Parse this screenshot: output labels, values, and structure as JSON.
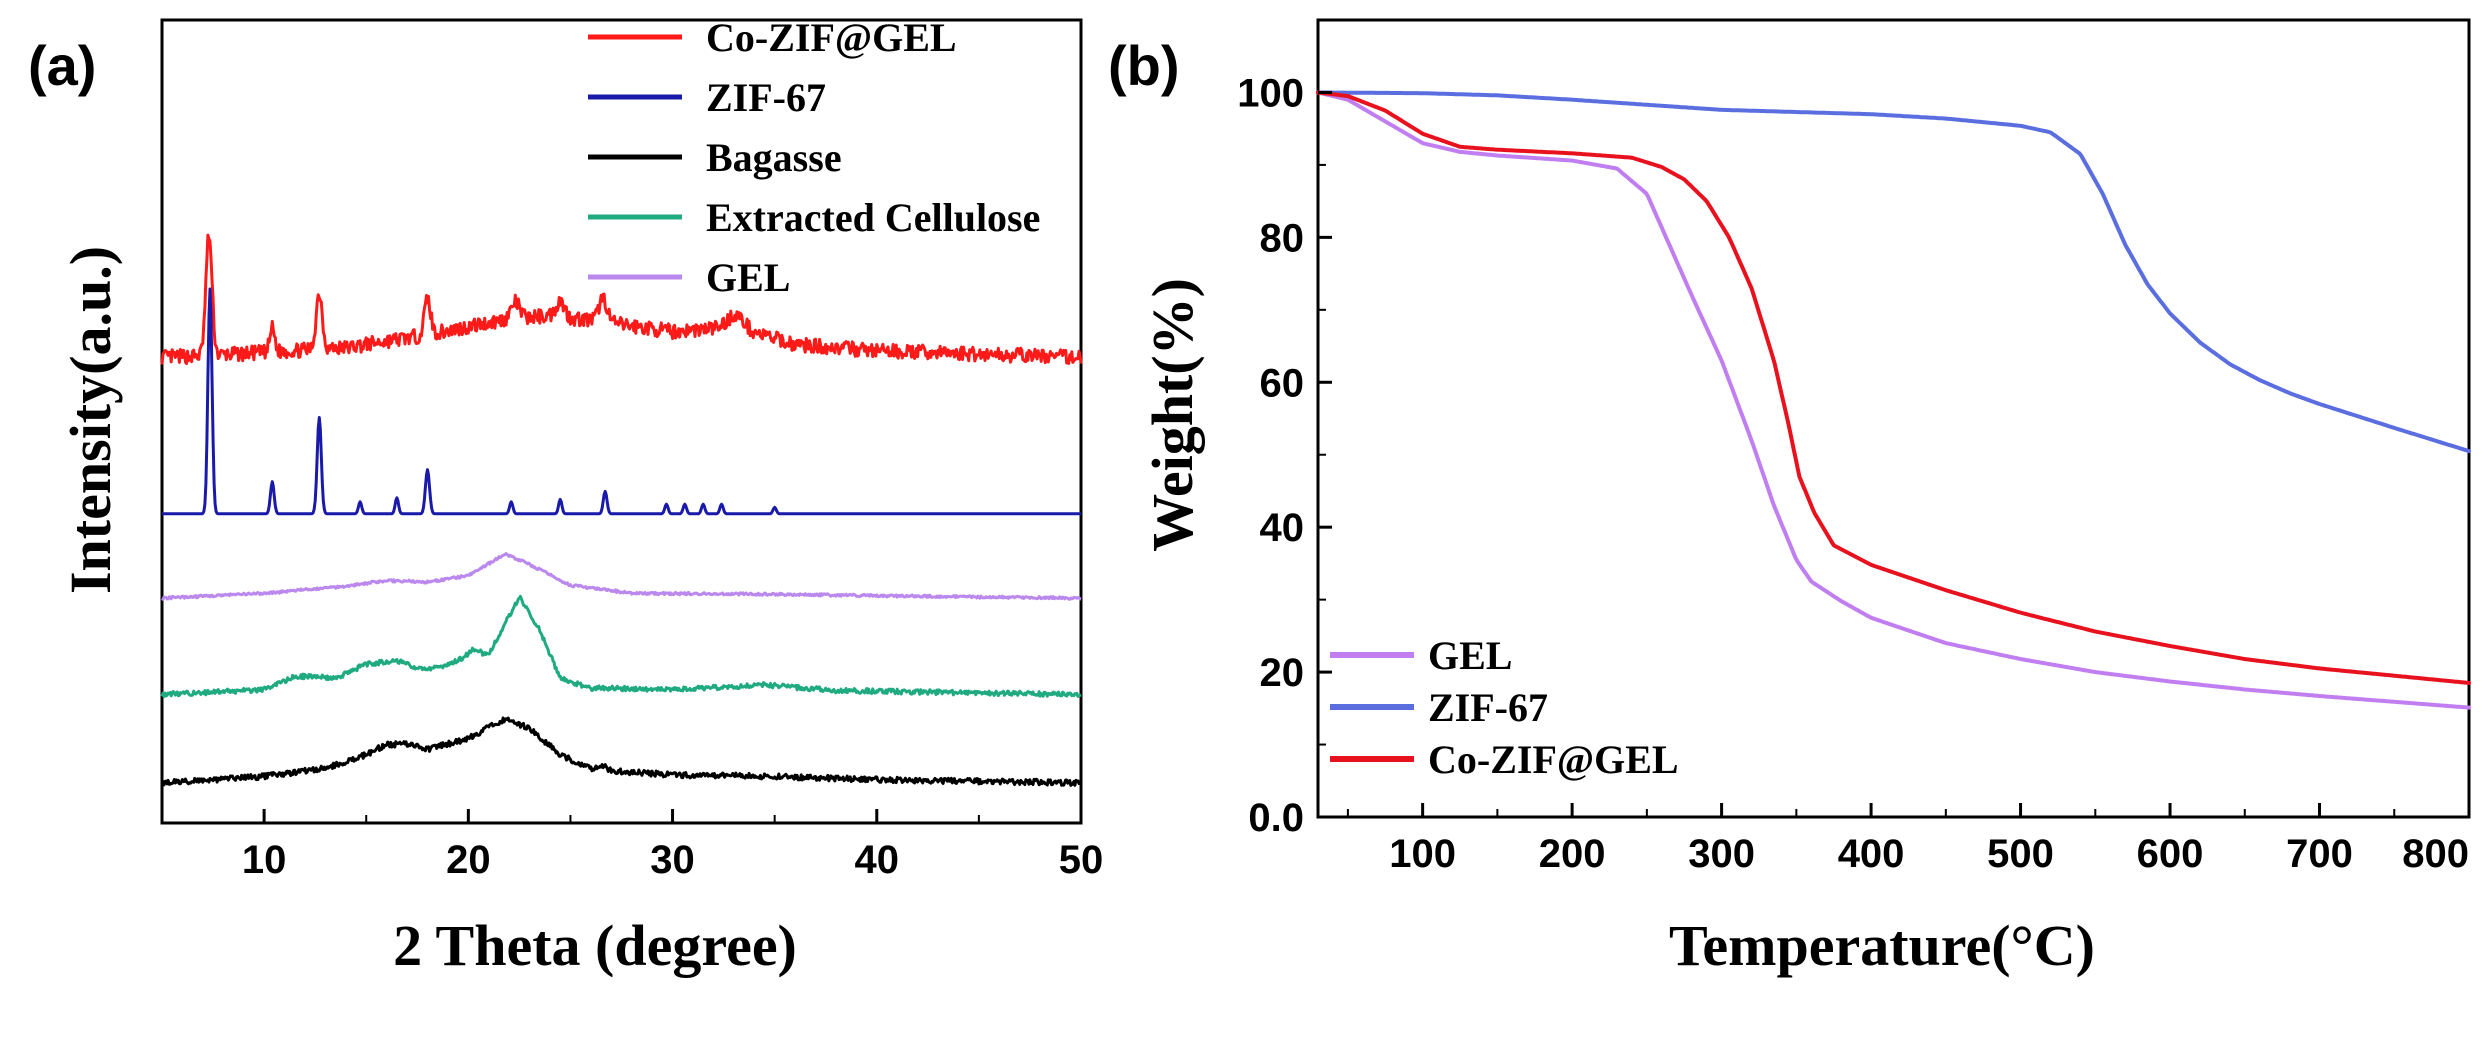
{
  "chart_data": [
    {
      "panel_label": "(a)",
      "type": "line",
      "title": "",
      "xlabel": "2 Theta (degree)",
      "ylabel": "Intensity(a.u.)",
      "xlim": [
        5,
        50
      ],
      "xticks": [
        10,
        20,
        30,
        40,
        50
      ],
      "ylim": [
        0,
        100
      ],
      "y_ticks_shown": false,
      "grid": false,
      "legend_position": "top-right",
      "legend": [
        "Co-ZIF@GEL",
        "ZIF-67",
        "Bagasse",
        "Extracted Cellulose",
        "GEL"
      ],
      "series": [
        {
          "name": "Co-ZIF@GEL",
          "color": "#ff1a1a",
          "baseline": 58,
          "noise": 0.9,
          "stroke": 3,
          "points": [
            [
              5,
              0
            ],
            [
              8,
              0.3
            ],
            [
              14,
              1.2
            ],
            [
              18,
              2.8
            ],
            [
              22,
              4.8
            ],
            [
              24,
              5.2
            ],
            [
              26,
              4.6
            ],
            [
              30,
              3.2
            ],
            [
              33,
              3.8
            ],
            [
              36,
              1.6
            ],
            [
              40,
              0.8
            ],
            [
              45,
              0.4
            ],
            [
              50,
              0
            ]
          ],
          "peaks": [
            [
              7.3,
              15,
              0.15
            ],
            [
              10.4,
              3,
              0.12
            ],
            [
              12.7,
              7,
              0.15
            ],
            [
              18.0,
              4.5,
              0.15
            ],
            [
              22.3,
              2,
              0.2
            ],
            [
              24.5,
              2,
              0.2
            ],
            [
              26.6,
              3,
              0.2
            ],
            [
              33.1,
              1.5,
              0.4
            ]
          ]
        },
        {
          "name": "ZIF-67",
          "color": "#1a1aaa",
          "baseline": 38.5,
          "noise": 0,
          "stroke": 3,
          "points": [
            [
              5,
              0
            ],
            [
              50,
              0
            ]
          ],
          "peaks": [
            [
              7.35,
              28,
              0.1
            ],
            [
              10.4,
              4,
              0.09
            ],
            [
              12.7,
              12,
              0.1
            ],
            [
              14.7,
              1.5,
              0.08
            ],
            [
              16.5,
              2,
              0.08
            ],
            [
              18.0,
              5.5,
              0.1
            ],
            [
              22.1,
              1.5,
              0.08
            ],
            [
              24.5,
              1.8,
              0.08
            ],
            [
              26.7,
              2.8,
              0.09
            ],
            [
              29.7,
              1.2,
              0.08
            ],
            [
              30.6,
              1.2,
              0.08
            ],
            [
              31.5,
              1.2,
              0.08
            ],
            [
              32.4,
              1.2,
              0.08
            ],
            [
              35.0,
              0.8,
              0.08
            ]
          ]
        },
        {
          "name": "GEL",
          "color": "#bb88ee",
          "baseline": 28,
          "noise": 0.15,
          "stroke": 3,
          "points": [
            [
              5,
              0
            ],
            [
              10,
              0.6
            ],
            [
              14,
              1.5
            ],
            [
              16,
              2.2
            ],
            [
              18,
              2.0
            ],
            [
              20,
              2.8
            ],
            [
              21.8,
              5.5
            ],
            [
              23,
              4.2
            ],
            [
              25,
              1.6
            ],
            [
              28,
              0.6
            ],
            [
              35,
              0.5
            ],
            [
              40,
              0.3
            ],
            [
              50,
              0
            ]
          ]
        },
        {
          "name": "Extracted Cellulose",
          "color": "#1faa80",
          "baseline": 16,
          "noise": 0.3,
          "stroke": 3,
          "points": [
            [
              5,
              0
            ],
            [
              10,
              0.6
            ],
            [
              11.5,
              2.2
            ],
            [
              12.5,
              2.3
            ],
            [
              13.5,
              2.0
            ],
            [
              15,
              3.8
            ],
            [
              16.5,
              4.2
            ],
            [
              18,
              3.0
            ],
            [
              19.5,
              4.2
            ],
            [
              20.2,
              5.5
            ],
            [
              21,
              5.0
            ],
            [
              22.5,
              12.2
            ],
            [
              23.5,
              8.0
            ],
            [
              24.5,
              2.0
            ],
            [
              26,
              0.8
            ],
            [
              30,
              0.6
            ],
            [
              34.5,
              1.2
            ],
            [
              38,
              0.5
            ],
            [
              45,
              0.2
            ],
            [
              50,
              0
            ]
          ]
        },
        {
          "name": "Bagasse",
          "color": "#000000",
          "baseline": 5,
          "noise": 0.35,
          "stroke": 3,
          "points": [
            [
              5,
              0
            ],
            [
              10,
              0.8
            ],
            [
              13,
              1.8
            ],
            [
              15,
              3.5
            ],
            [
              16,
              4.8
            ],
            [
              17,
              4.8
            ],
            [
              18,
              4.2
            ],
            [
              20,
              5.5
            ],
            [
              21.8,
              8.0
            ],
            [
              23,
              6.8
            ],
            [
              24.5,
              3.5
            ],
            [
              26,
              1.8
            ],
            [
              26.5,
              2.2
            ],
            [
              27,
              1.5
            ],
            [
              30,
              1.0
            ],
            [
              35,
              0.8
            ],
            [
              40,
              0.4
            ],
            [
              45,
              0.2
            ],
            [
              50,
              0
            ]
          ]
        }
      ]
    },
    {
      "panel_label": "(b)",
      "type": "line",
      "title": "",
      "xlabel": "Temperature(°C)",
      "ylabel": "Weight(%)",
      "xlim": [
        30,
        800
      ],
      "ylim": [
        0,
        110
      ],
      "xticks": [
        100,
        200,
        300,
        400,
        500,
        600,
        700,
        800
      ],
      "xtick_labels": [
        "100",
        "200",
        "300",
        "400",
        "500",
        "600",
        "700",
        "800"
      ],
      "yticks": [
        0,
        20,
        40,
        60,
        80,
        100
      ],
      "ytick_labels": [
        "0.0",
        "20",
        "40",
        "60",
        "80",
        "100"
      ],
      "grid": false,
      "legend_position": "bottom-left",
      "legend": [
        "GEL",
        "ZIF-67",
        "Co-ZIF@GEL"
      ],
      "series": [
        {
          "name": "GEL",
          "color": "#c07ef0",
          "stroke": 4,
          "points": [
            [
              30,
              100
            ],
            [
              50,
              99
            ],
            [
              75,
              96
            ],
            [
              100,
              93
            ],
            [
              125,
              91.8
            ],
            [
              150,
              91.3
            ],
            [
              200,
              90.6
            ],
            [
              230,
              89.5
            ],
            [
              250,
              86
            ],
            [
              265,
              79
            ],
            [
              280,
              72
            ],
            [
              300,
              63
            ],
            [
              320,
              52
            ],
            [
              335,
              43
            ],
            [
              350,
              35.5
            ],
            [
              360,
              32.5
            ],
            [
              380,
              29.8
            ],
            [
              400,
              27.5
            ],
            [
              450,
              24
            ],
            [
              500,
              21.8
            ],
            [
              550,
              20
            ],
            [
              600,
              18.7
            ],
            [
              650,
              17.6
            ],
            [
              700,
              16.7
            ],
            [
              750,
              15.9
            ],
            [
              800,
              15.1
            ]
          ]
        },
        {
          "name": "ZIF-67",
          "color": "#5b6ee0",
          "stroke": 4,
          "points": [
            [
              30,
              100
            ],
            [
              100,
              99.9
            ],
            [
              150,
              99.6
            ],
            [
              200,
              99
            ],
            [
              250,
              98.3
            ],
            [
              300,
              97.6
            ],
            [
              350,
              97.3
            ],
            [
              400,
              97.0
            ],
            [
              450,
              96.4
            ],
            [
              500,
              95.4
            ],
            [
              520,
              94.5
            ],
            [
              540,
              91.5
            ],
            [
              555,
              86
            ],
            [
              570,
              79
            ],
            [
              585,
              73.5
            ],
            [
              600,
              69.5
            ],
            [
              620,
              65.5
            ],
            [
              640,
              62.5
            ],
            [
              660,
              60.3
            ],
            [
              680,
              58.5
            ],
            [
              700,
              57
            ],
            [
              750,
              53.7
            ],
            [
              800,
              50.5
            ]
          ]
        },
        {
          "name": "Co-ZIF@GEL",
          "color": "#e8121e",
          "stroke": 4,
          "points": [
            [
              30,
              100
            ],
            [
              50,
              99.5
            ],
            [
              75,
              97.5
            ],
            [
              100,
              94.3
            ],
            [
              125,
              92.5
            ],
            [
              150,
              92.1
            ],
            [
              200,
              91.6
            ],
            [
              240,
              91
            ],
            [
              260,
              89.7
            ],
            [
              275,
              88
            ],
            [
              290,
              85
            ],
            [
              305,
              80
            ],
            [
              320,
              73
            ],
            [
              335,
              63
            ],
            [
              345,
              54
            ],
            [
              352,
              47
            ],
            [
              362,
              42
            ],
            [
              375,
              37.5
            ],
            [
              400,
              34.8
            ],
            [
              450,
              31.3
            ],
            [
              500,
              28.2
            ],
            [
              550,
              25.6
            ],
            [
              600,
              23.6
            ],
            [
              650,
              21.8
            ],
            [
              700,
              20.5
            ],
            [
              750,
              19.5
            ],
            [
              800,
              18.5
            ]
          ]
        }
      ]
    }
  ]
}
